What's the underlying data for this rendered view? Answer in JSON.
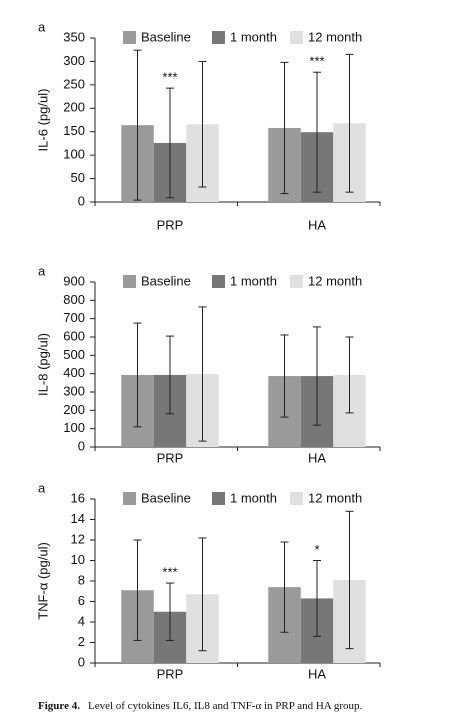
{
  "chart_data": [
    {
      "type": "bar",
      "panel": "a",
      "ylabel": "IL-6 (pg/ul)",
      "categories": [
        "PRP",
        "HA"
      ],
      "series": [
        {
          "name": "Baseline",
          "color": "#9a9a9a",
          "values": [
            164,
            158
          ],
          "errors": [
            160,
            140
          ]
        },
        {
          "name": "1 month",
          "color": "#777777",
          "values": [
            126,
            149
          ],
          "errors": [
            117,
            128
          ]
        },
        {
          "name": "12 month",
          "color": "#e0e0e0",
          "values": [
            166,
            168
          ],
          "errors": [
            134,
            147
          ]
        }
      ],
      "ylim": [
        0,
        350
      ],
      "yticks": [
        0,
        50,
        100,
        150,
        200,
        250,
        300,
        350
      ],
      "annotations": [
        {
          "text": "***",
          "category": 0,
          "series": 1
        },
        {
          "text": "***",
          "category": 1,
          "series": 1
        }
      ]
    },
    {
      "type": "bar",
      "panel": "a",
      "ylabel": "IL-8 (pg/ul)",
      "categories": [
        "PRP",
        "HA"
      ],
      "series": [
        {
          "name": "Baseline",
          "color": "#9a9a9a",
          "values": [
            393,
            387
          ],
          "errors": [
            283,
            224
          ]
        },
        {
          "name": "1 month",
          "color": "#777777",
          "values": [
            393,
            387
          ],
          "errors": [
            212,
            268
          ]
        },
        {
          "name": "12 month",
          "color": "#e0e0e0",
          "values": [
            398,
            393
          ],
          "errors": [
            366,
            207
          ]
        }
      ],
      "ylim": [
        0,
        900
      ],
      "yticks": [
        0,
        100,
        200,
        300,
        400,
        500,
        600,
        700,
        800,
        900
      ],
      "annotations": []
    },
    {
      "type": "bar",
      "panel": "a",
      "ylabel": "TNF-α (pg/ul)",
      "categories": [
        "PRP",
        "HA"
      ],
      "series": [
        {
          "name": "Baseline",
          "color": "#9a9a9a",
          "values": [
            7.1,
            7.4
          ],
          "errors": [
            4.9,
            4.4
          ]
        },
        {
          "name": "1 month",
          "color": "#777777",
          "values": [
            5.0,
            6.3
          ],
          "errors": [
            2.8,
            3.7
          ]
        },
        {
          "name": "12 month",
          "color": "#e0e0e0",
          "values": [
            6.7,
            8.1
          ],
          "errors": [
            5.5,
            6.7
          ]
        }
      ],
      "ylim": [
        0,
        16
      ],
      "yticks": [
        0,
        2,
        4,
        6,
        8,
        10,
        12,
        14,
        16
      ],
      "annotations": [
        {
          "text": "***",
          "category": 0,
          "series": 1
        },
        {
          "text": "*",
          "category": 1,
          "series": 1
        }
      ]
    }
  ],
  "caption": {
    "label": "Figure 4.",
    "text": "Level of cytokines IL6, IL8 and TNF-α in PRP and HA group."
  }
}
